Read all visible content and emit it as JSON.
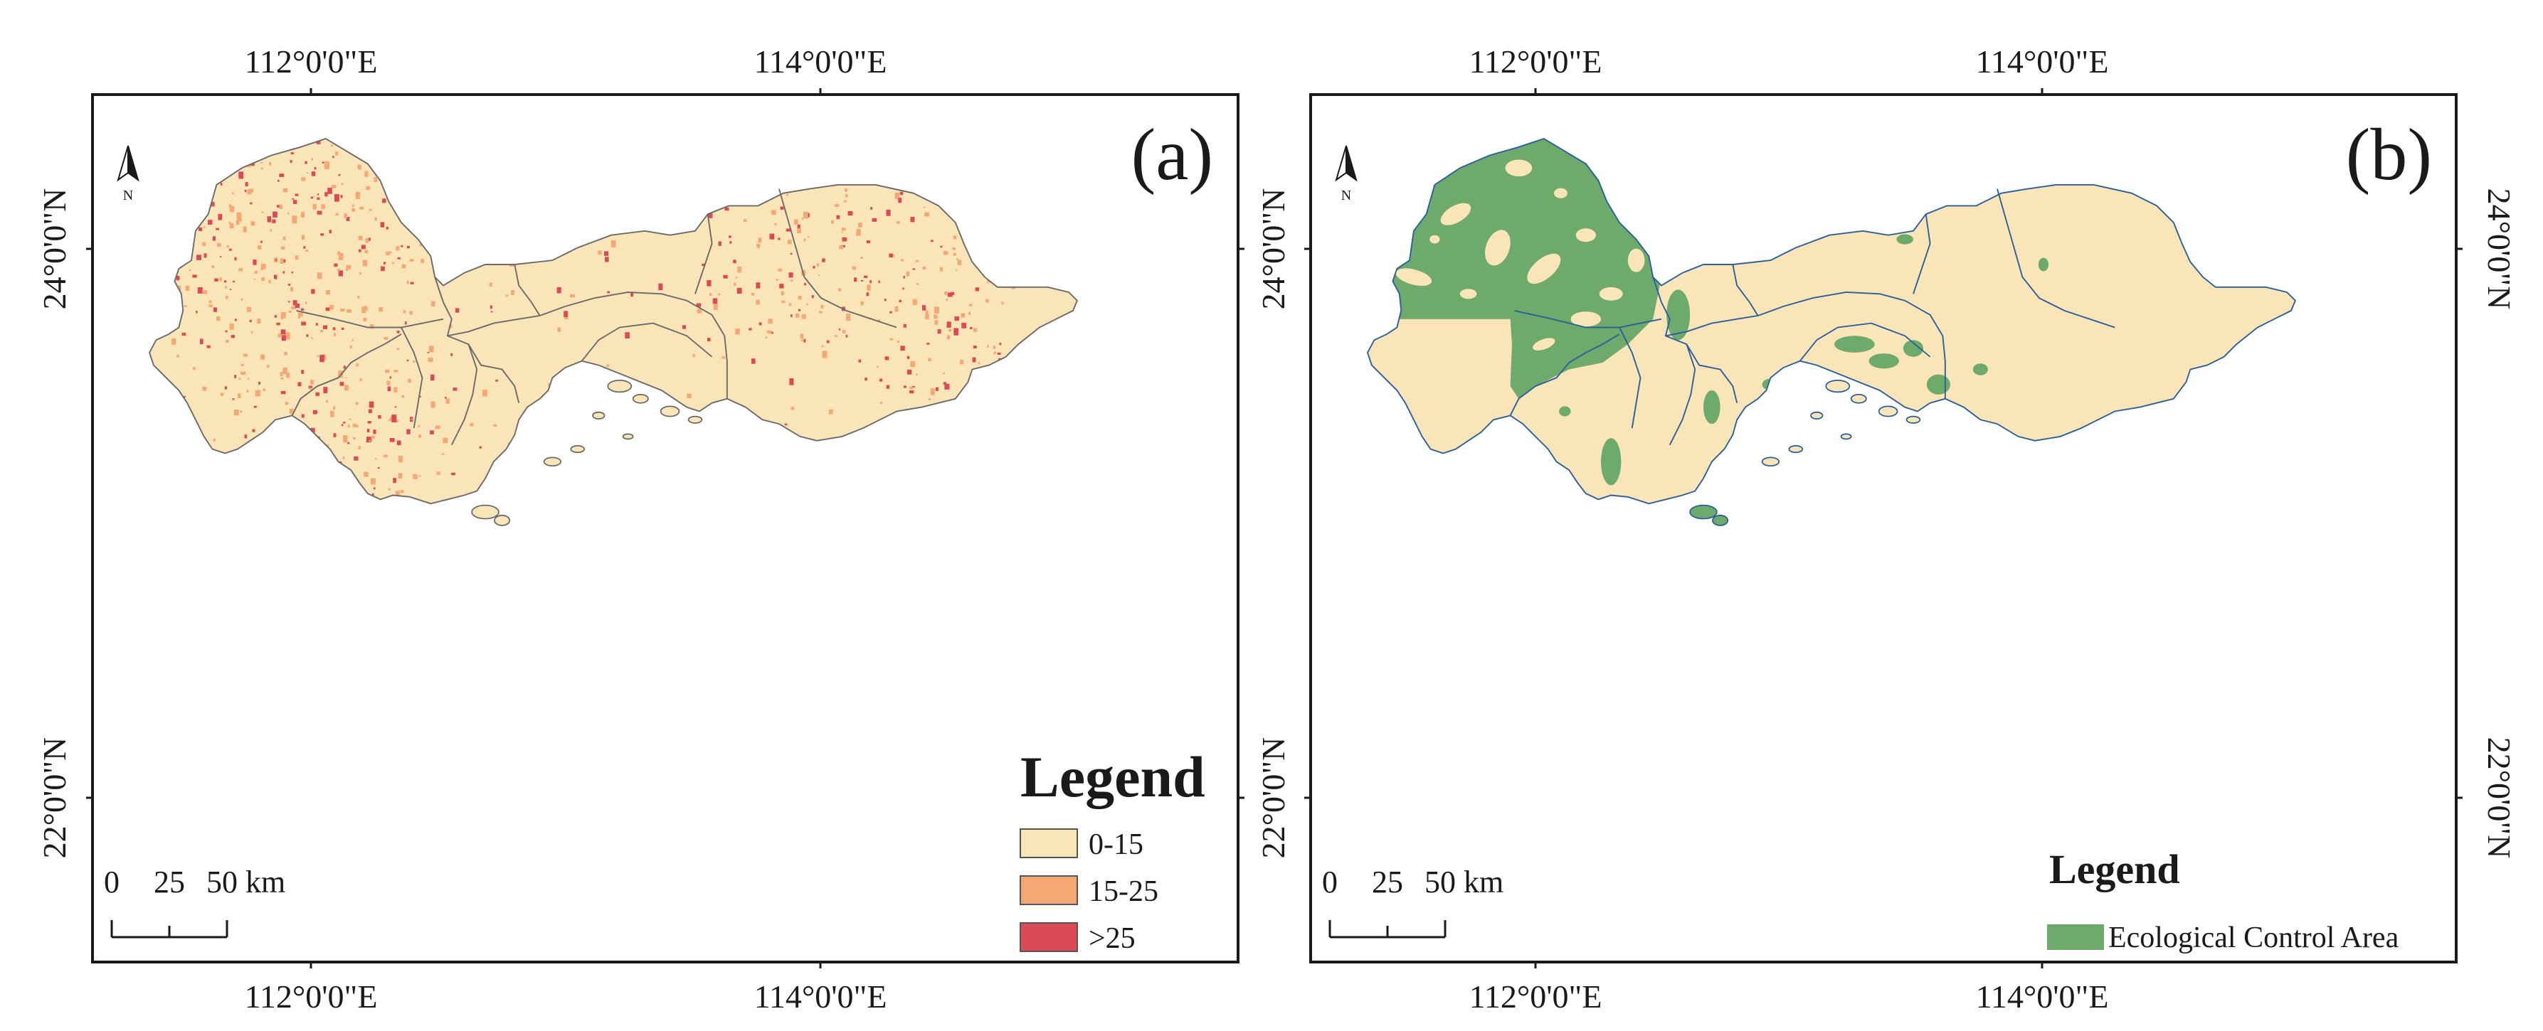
{
  "colors": {
    "slope_low": "#fae5b8",
    "slope_mid": "#f5a873",
    "slope_high": "#dc4a55",
    "ecological": "#6daa6b",
    "land_b": "#fae5b8",
    "boundary_a": "#6a6a6a",
    "boundary_b": "#2a5f9e"
  },
  "coordinates": {
    "lon_ticks": [
      "112°0'0\"E",
      "114°0'0\"E"
    ],
    "lat_ticks": [
      "24°0'0\"N",
      "22°0'0\"N"
    ]
  },
  "scale_bar": {
    "ticks": [
      "0",
      "25",
      "50 km"
    ]
  },
  "panel_a": {
    "label": "(a)",
    "legend_title": "Legend",
    "legend_items": [
      {
        "label": "0-15",
        "color": "#fae5b8"
      },
      {
        "label": "15-25",
        "color": "#f5a873"
      },
      {
        "label": ">25",
        "color": "#dc4a55"
      }
    ]
  },
  "panel_b": {
    "label": "(b)",
    "legend_title": "Legend",
    "legend_items": [
      {
        "label": "Ecological Control Area",
        "color": "#6daa6b"
      }
    ]
  }
}
